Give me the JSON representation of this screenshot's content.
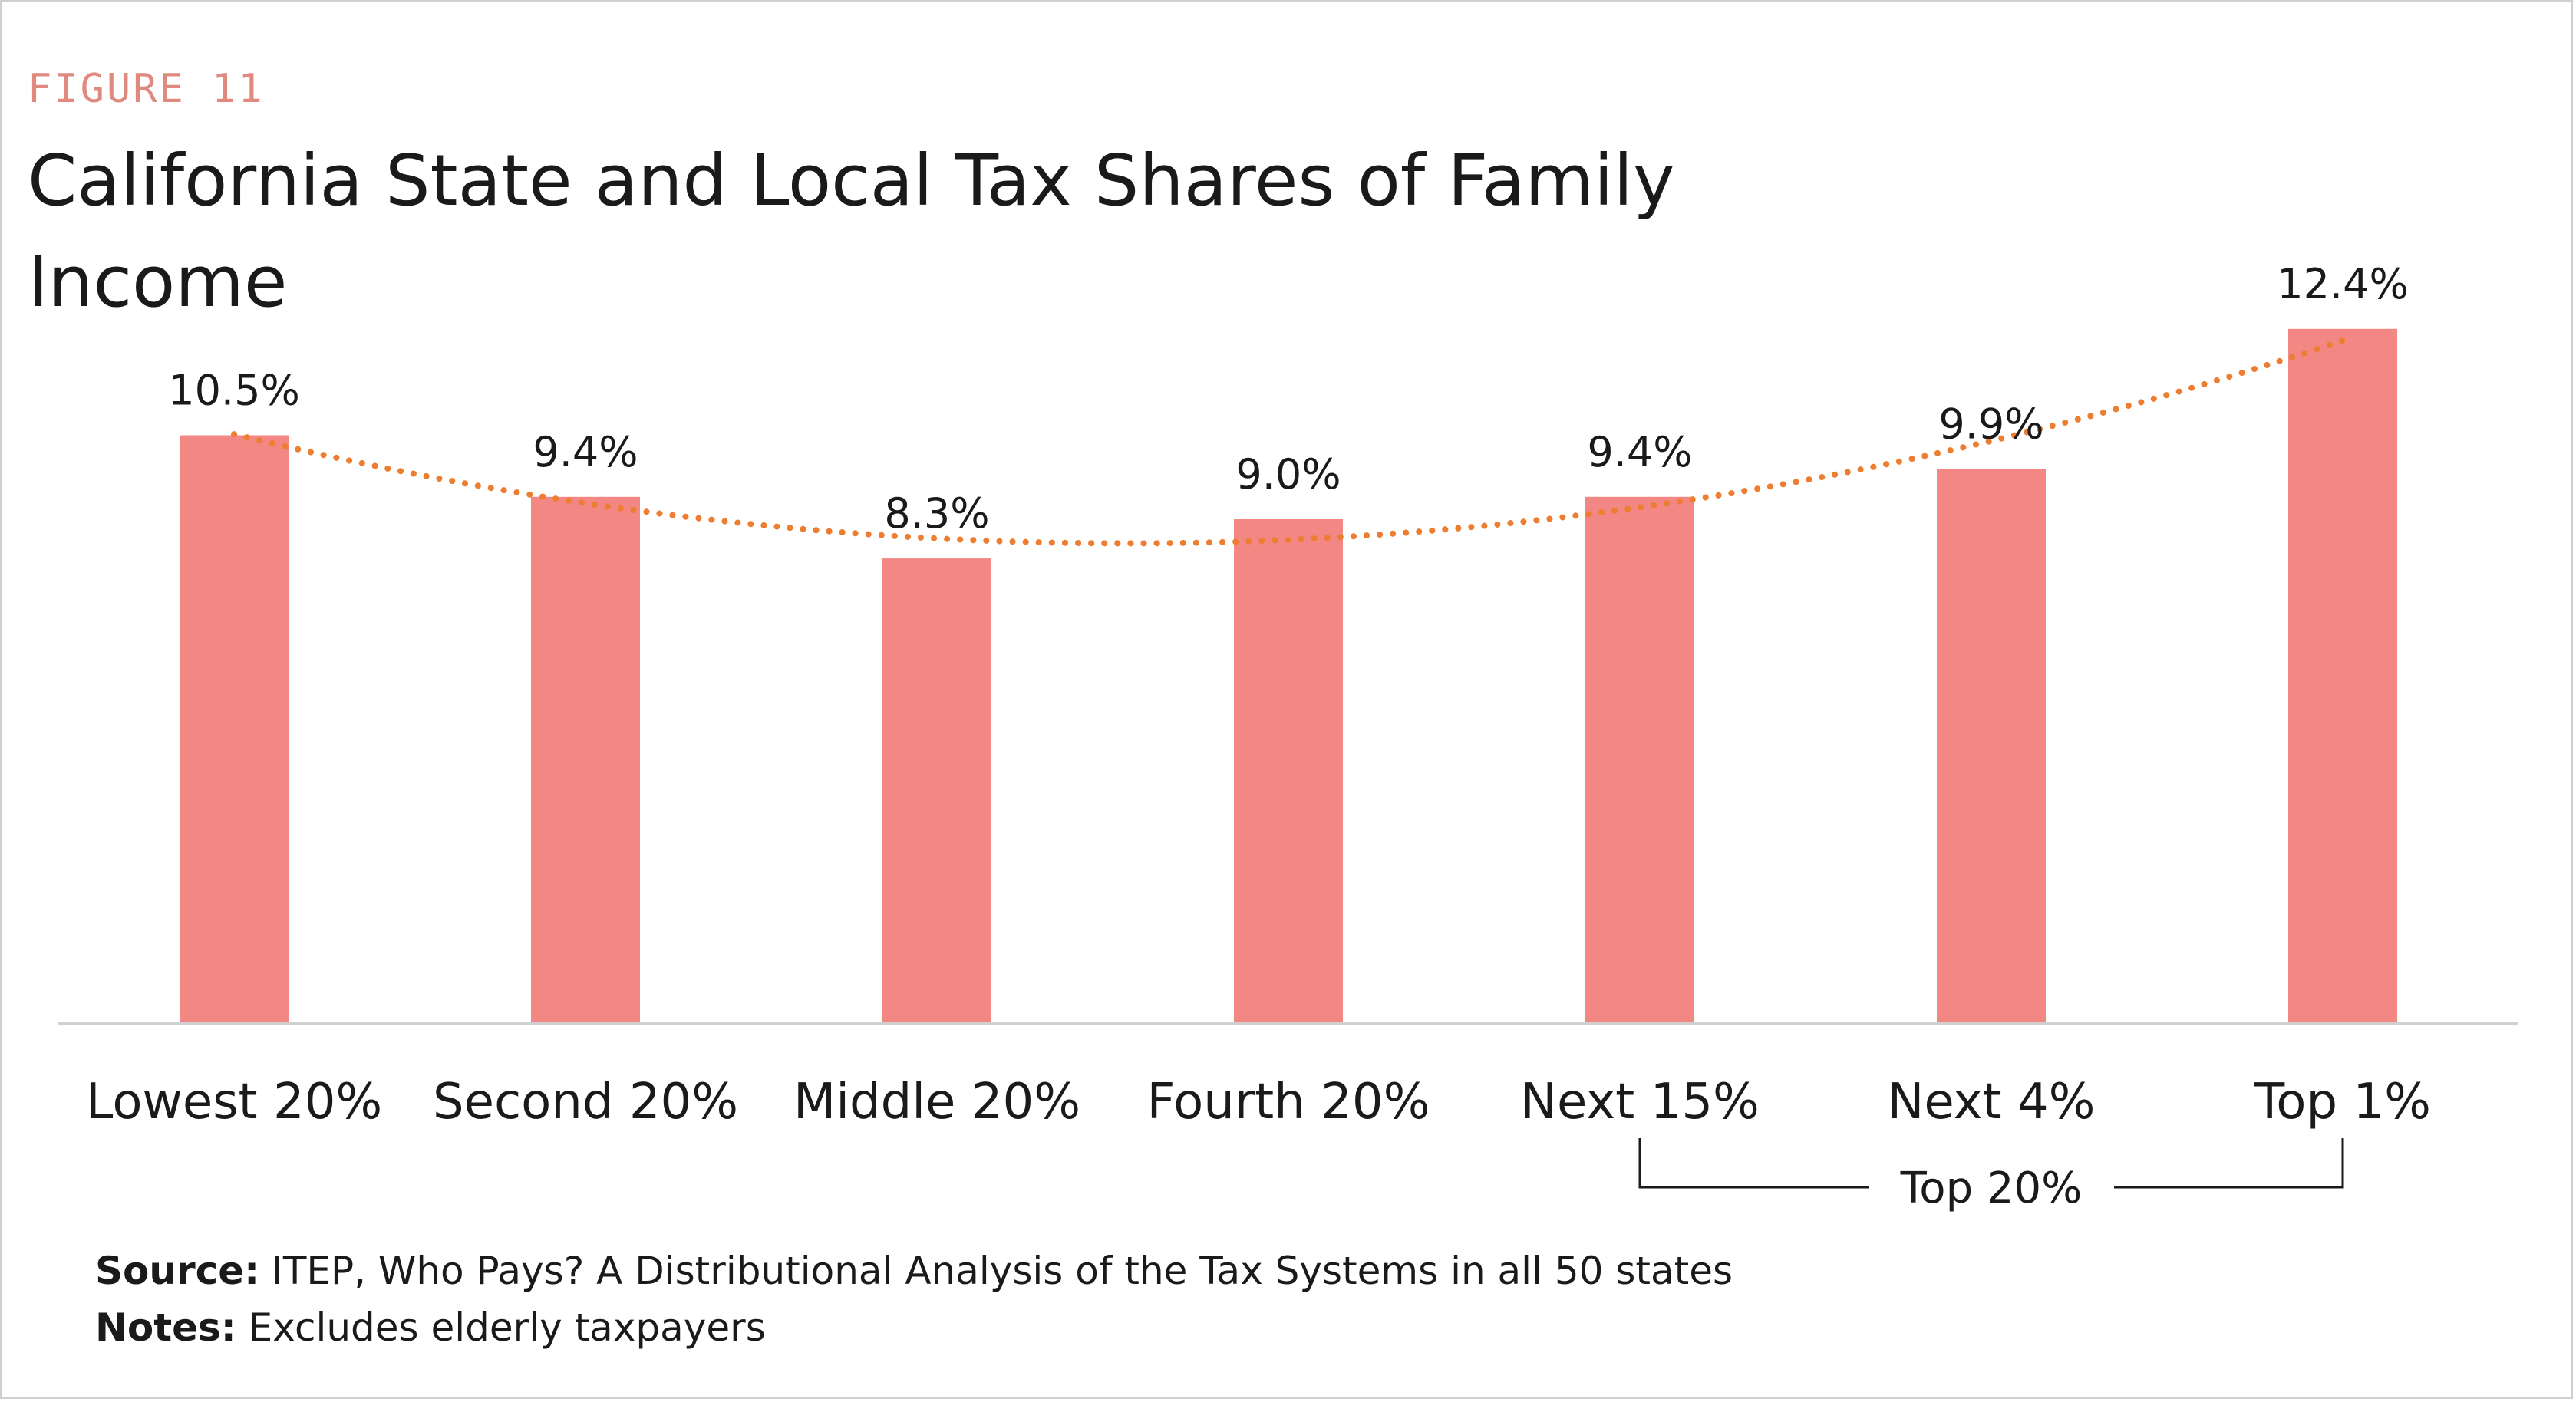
{
  "figure_label": "FIGURE 11",
  "title": "California State and Local Tax Shares of Family Income",
  "colors": {
    "bar": "#f28783",
    "trend": "#ed7d31",
    "axis": "#d0d0d0",
    "figure_label": "#e0897f",
    "text": "#1a1a1a"
  },
  "chart_data": {
    "type": "bar",
    "title": "California State and Local Tax Shares of Family Income",
    "categories": [
      "Lowest 20%",
      "Second 20%",
      "Middle 20%",
      "Fourth 20%",
      "Next 15%",
      "Next 4%",
      "Top 1%"
    ],
    "values": [
      10.5,
      9.4,
      8.3,
      9.0,
      9.4,
      9.9,
      12.4
    ],
    "data_labels": [
      "10.5%",
      "9.4%",
      "8.3%",
      "9.0%",
      "9.4%",
      "9.9%",
      "12.4%"
    ],
    "ylim": [
      0,
      13
    ],
    "xlabel": "",
    "ylabel": "",
    "grid": false,
    "trendline": "polynomial, dotted",
    "group_annotation": {
      "label": "Top 20%",
      "from_category": "Next 15%",
      "to_category": "Top 1%"
    }
  },
  "footer": {
    "source_label": "Source:",
    "source_text": "ITEP, Who Pays? A Distributional  Analysis of the Tax Systems in all 50 states",
    "notes_label": "Notes:",
    "notes_text": "Excludes elderly taxpayers"
  }
}
